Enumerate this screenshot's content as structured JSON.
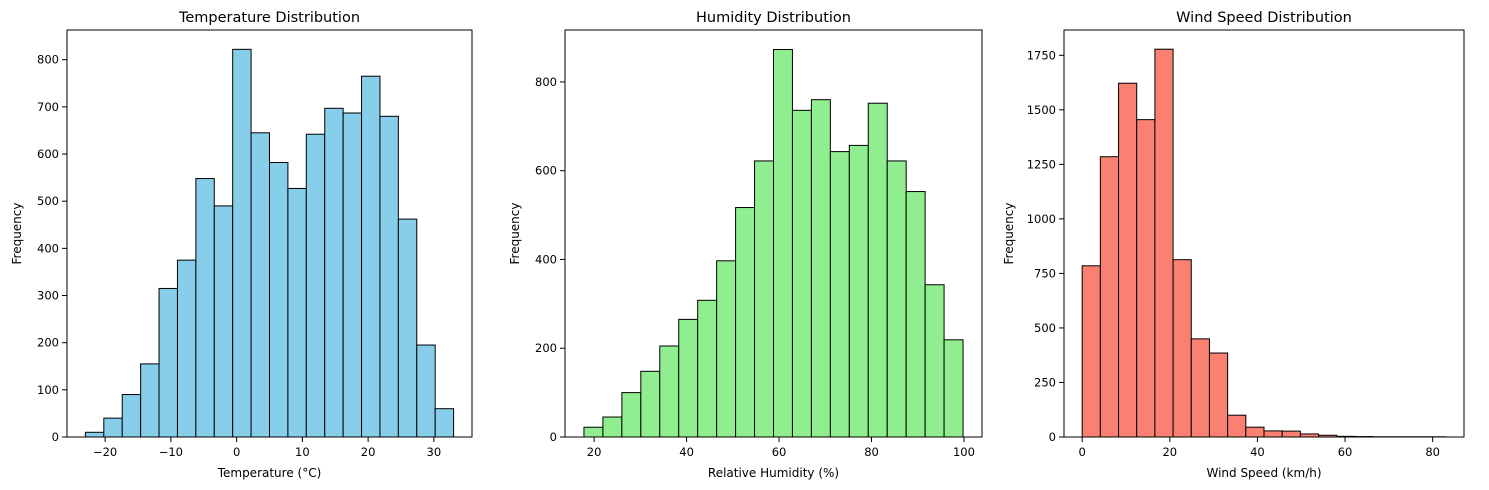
{
  "chart_data": [
    {
      "type": "bar",
      "histogram": true,
      "title": "Temperature Distribution",
      "xlabel": "Temperature (°C)",
      "ylabel": "Frequency",
      "color": "#87ceeb",
      "edge_color": "#000000",
      "bin_edges": [
        -23.0,
        -20.2,
        -17.4,
        -14.6,
        -11.8,
        -9.0,
        -6.2,
        -3.4,
        -0.6,
        2.2,
        5.0,
        7.8,
        10.6,
        13.4,
        16.2,
        19.0,
        21.8,
        24.6,
        27.4,
        30.2,
        33.0
      ],
      "values": [
        10,
        40,
        90,
        155,
        315,
        375,
        548,
        490,
        822,
        645,
        582,
        527,
        642,
        697,
        687,
        765,
        680,
        462,
        195,
        60
      ],
      "xlim": [
        -25.8,
        35.8
      ],
      "ylim": [
        0,
        863
      ],
      "xticks": [
        -20,
        -10,
        0,
        10,
        20,
        30
      ],
      "xtick_labels": [
        "−20",
        "−10",
        "0",
        "10",
        "20",
        "30"
      ],
      "yticks": [
        0,
        100,
        200,
        300,
        400,
        500,
        600,
        700,
        800
      ],
      "ytick_labels": [
        "0",
        "100",
        "200",
        "300",
        "400",
        "500",
        "600",
        "700",
        "800"
      ],
      "grid": false
    },
    {
      "type": "bar",
      "histogram": true,
      "title": "Humidity Distribution",
      "xlabel": "Relative Humidity (%)",
      "ylabel": "Frequency",
      "color": "#90ee90",
      "edge_color": "#000000",
      "bin_edges": [
        17.8,
        21.9,
        26.0,
        30.1,
        34.2,
        38.3,
        42.4,
        46.5,
        50.6,
        54.7,
        58.8,
        62.9,
        67.0,
        71.1,
        75.2,
        79.3,
        83.4,
        87.5,
        91.6,
        95.7,
        99.8
      ],
      "values": [
        22,
        45,
        100,
        148,
        205,
        265,
        308,
        397,
        517,
        622,
        873,
        736,
        760,
        643,
        657,
        752,
        622,
        553,
        343,
        219
      ],
      "xlim": [
        13.7,
        103.9
      ],
      "ylim": [
        0,
        917
      ],
      "xticks": [
        20,
        40,
        60,
        80,
        100
      ],
      "xtick_labels": [
        "20",
        "40",
        "60",
        "80",
        "100"
      ],
      "yticks": [
        0,
        200,
        400,
        600,
        800
      ],
      "ytick_labels": [
        "0",
        "200",
        "400",
        "600",
        "800"
      ],
      "grid": false
    },
    {
      "type": "bar",
      "histogram": true,
      "title": "Wind Speed Distribution",
      "xlabel": "Wind Speed (km/h)",
      "ylabel": "Frequency",
      "color": "#fa8072",
      "edge_color": "#000000",
      "bin_edges": [
        0.0,
        4.15,
        8.3,
        12.45,
        16.6,
        20.75,
        24.9,
        29.05,
        33.2,
        37.35,
        41.5,
        45.65,
        49.8,
        53.95,
        58.1,
        62.25,
        66.4,
        70.55,
        74.7,
        78.85,
        83.0
      ],
      "values": [
        785,
        1285,
        1622,
        1455,
        1778,
        813,
        450,
        385,
        100,
        45,
        28,
        27,
        14,
        8,
        3,
        2,
        1,
        1,
        1,
        1
      ],
      "xlim": [
        -4.15,
        87.15
      ],
      "ylim": [
        0,
        1866
      ],
      "xticks": [
        0,
        20,
        40,
        60,
        80
      ],
      "xtick_labels": [
        "0",
        "20",
        "40",
        "60",
        "80"
      ],
      "yticks": [
        0,
        250,
        500,
        750,
        1000,
        1250,
        1500,
        1750
      ],
      "ytick_labels": [
        "0",
        "250",
        "500",
        "750",
        "1000",
        "1250",
        "1500",
        "1750"
      ],
      "grid": false
    }
  ]
}
